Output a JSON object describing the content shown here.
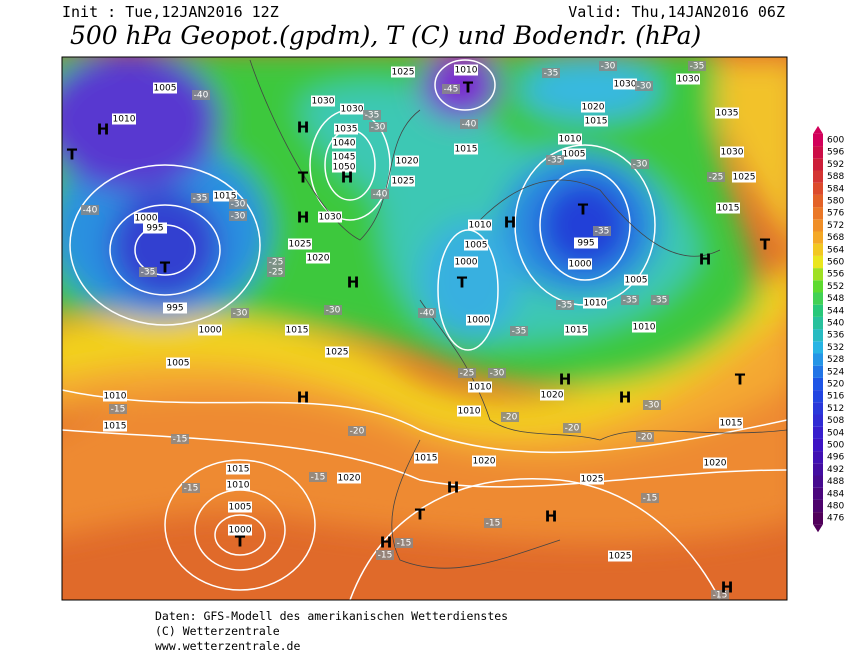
{
  "header": {
    "init": "Init : Tue,12JAN2016 12Z",
    "valid": "Valid: Thu,14JAN2016 06Z",
    "title": "500 hPa Geopot.(gpdm), T (C) und Bodendr. (hPa)"
  },
  "colorbar": {
    "levels": [
      476,
      480,
      484,
      488,
      492,
      496,
      500,
      504,
      508,
      512,
      516,
      520,
      524,
      528,
      532,
      536,
      540,
      544,
      548,
      552,
      556,
      560,
      564,
      568,
      572,
      576,
      580,
      584,
      588,
      592,
      596,
      600
    ]
  },
  "map": {
    "pressure_systems": [
      "T",
      "H",
      "T",
      "H",
      "T",
      "H",
      "H",
      "H",
      "T",
      "T",
      "H",
      "T",
      "H",
      "T",
      "H",
      "T",
      "H",
      "T",
      "H",
      "H",
      "H",
      "H",
      "H",
      "T"
    ],
    "pressure_labels": [
      "1005",
      "1010",
      "1000",
      "995",
      "1015",
      "1025",
      "1020",
      "1000",
      "1005",
      "1015",
      "1025",
      "1030",
      "1030",
      "1035",
      "1040",
      "1045",
      "1050",
      "1020",
      "1025",
      "1030",
      "1025",
      "1010",
      "1015",
      "1010",
      "1005",
      "1000",
      "1000",
      "1010",
      "1010",
      "1020",
      "1015",
      "1020",
      "1015",
      "1010",
      "1005",
      "1000",
      "1010",
      "1015",
      "995",
      "1010",
      "1005",
      "995",
      "1000",
      "1005",
      "1010",
      "1015",
      "1010",
      "1020",
      "1015",
      "1030",
      "1030",
      "1035",
      "1030",
      "1025",
      "1015",
      "1020",
      "1015",
      "1020",
      "1025",
      "1025"
    ],
    "temperature_labels": [
      "-40",
      "-45",
      "-40",
      "-35",
      "-30",
      "-40",
      "-35",
      "-30",
      "-30",
      "-40",
      "-35",
      "-25",
      "-25",
      "-30",
      "-30",
      "-40",
      "-35",
      "-25",
      "-30",
      "-35",
      "-35",
      "-35",
      "-30",
      "-35",
      "-30",
      "-35",
      "-25",
      "-30",
      "-35",
      "-35",
      "-30",
      "-20",
      "-20",
      "-20",
      "-20",
      "-15",
      "-15",
      "-15",
      "-15",
      "-15",
      "-15",
      "-15",
      "-15",
      "-15"
    ]
  },
  "footer": {
    "source": "Daten: GFS-Modell des amerikanischen Wetterdienstes",
    "copyright": "(C) Wetterzentrale",
    "url": "www.wetterzentrale.de"
  }
}
